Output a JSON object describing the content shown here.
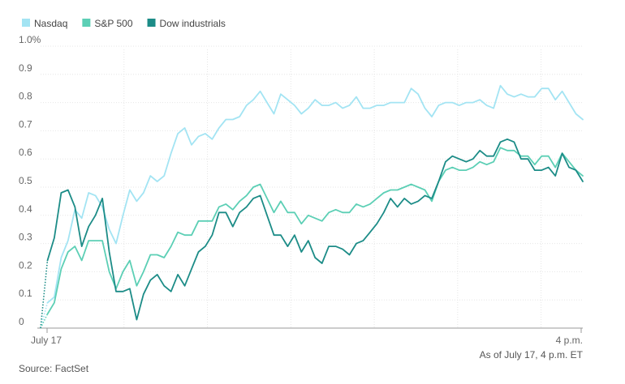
{
  "chart_data": {
    "type": "line",
    "title": "",
    "xlabel": "",
    "ylabel": "",
    "ylim": [
      0,
      1.0
    ],
    "y_ticks": [
      {
        "value": 0,
        "label": "0"
      },
      {
        "value": 0.1,
        "label": "0.1"
      },
      {
        "value": 0.2,
        "label": "0.2"
      },
      {
        "value": 0.3,
        "label": "0.3"
      },
      {
        "value": 0.4,
        "label": "0.4"
      },
      {
        "value": 0.5,
        "label": "0.5"
      },
      {
        "value": 0.6,
        "label": "0.6"
      },
      {
        "value": 0.7,
        "label": "0.7"
      },
      {
        "value": 0.8,
        "label": "0.8"
      },
      {
        "value": 0.9,
        "label": "0.9"
      },
      {
        "value": 1.0,
        "label": "1.0%"
      }
    ],
    "x_start_label": "July 17",
    "x_end_label": "4 p.m.",
    "grid": true,
    "legend_position": "top-left",
    "note": "As of July 17, 4 p.m. ET",
    "source": "Source: FactSet",
    "series": [
      {
        "name": "Nasdaq",
        "color": "#a3e4f3",
        "values": [
          0,
          0.09,
          0.11,
          0.25,
          0.31,
          0.42,
          0.39,
          0.48,
          0.47,
          0.43,
          0.35,
          0.3,
          0.4,
          0.49,
          0.45,
          0.48,
          0.54,
          0.52,
          0.54,
          0.62,
          0.69,
          0.71,
          0.65,
          0.68,
          0.69,
          0.67,
          0.71,
          0.74,
          0.74,
          0.75,
          0.79,
          0.81,
          0.84,
          0.8,
          0.76,
          0.83,
          0.81,
          0.79,
          0.76,
          0.78,
          0.81,
          0.79,
          0.79,
          0.8,
          0.78,
          0.79,
          0.82,
          0.78,
          0.78,
          0.79,
          0.79,
          0.8,
          0.8,
          0.8,
          0.85,
          0.83,
          0.78,
          0.75,
          0.79,
          0.8,
          0.8,
          0.79,
          0.8,
          0.8,
          0.81,
          0.79,
          0.78,
          0.86,
          0.83,
          0.82,
          0.83,
          0.82,
          0.82,
          0.85,
          0.85,
          0.81,
          0.84,
          0.8,
          0.76,
          0.74
        ]
      },
      {
        "name": "S&P 500",
        "color": "#5ccfb5",
        "values": [
          0,
          0.05,
          0.09,
          0.21,
          0.27,
          0.29,
          0.24,
          0.31,
          0.31,
          0.31,
          0.2,
          0.14,
          0.2,
          0.24,
          0.15,
          0.2,
          0.26,
          0.26,
          0.25,
          0.29,
          0.34,
          0.33,
          0.33,
          0.38,
          0.38,
          0.38,
          0.43,
          0.44,
          0.42,
          0.45,
          0.47,
          0.5,
          0.51,
          0.46,
          0.41,
          0.45,
          0.41,
          0.41,
          0.37,
          0.4,
          0.39,
          0.38,
          0.41,
          0.42,
          0.41,
          0.41,
          0.44,
          0.43,
          0.44,
          0.46,
          0.48,
          0.49,
          0.49,
          0.5,
          0.51,
          0.5,
          0.49,
          0.45,
          0.52,
          0.56,
          0.57,
          0.56,
          0.56,
          0.57,
          0.59,
          0.58,
          0.59,
          0.64,
          0.63,
          0.63,
          0.61,
          0.61,
          0.58,
          0.61,
          0.61,
          0.57,
          0.62,
          0.59,
          0.56,
          0.54
        ]
      },
      {
        "name": "Dow industrials",
        "color": "#1c8c87",
        "values": [
          0,
          0.24,
          0.32,
          0.48,
          0.49,
          0.43,
          0.29,
          0.36,
          0.4,
          0.46,
          0.27,
          0.13,
          0.13,
          0.14,
          0.03,
          0.12,
          0.17,
          0.19,
          0.15,
          0.13,
          0.19,
          0.15,
          0.21,
          0.27,
          0.29,
          0.33,
          0.41,
          0.41,
          0.36,
          0.41,
          0.43,
          0.46,
          0.47,
          0.4,
          0.33,
          0.33,
          0.29,
          0.33,
          0.27,
          0.31,
          0.25,
          0.23,
          0.29,
          0.29,
          0.28,
          0.26,
          0.3,
          0.31,
          0.34,
          0.37,
          0.41,
          0.46,
          0.43,
          0.46,
          0.44,
          0.45,
          0.47,
          0.46,
          0.52,
          0.59,
          0.61,
          0.6,
          0.59,
          0.6,
          0.63,
          0.61,
          0.61,
          0.66,
          0.67,
          0.66,
          0.6,
          0.6,
          0.56,
          0.56,
          0.57,
          0.54,
          0.62,
          0.57,
          0.56,
          0.52
        ]
      }
    ]
  }
}
